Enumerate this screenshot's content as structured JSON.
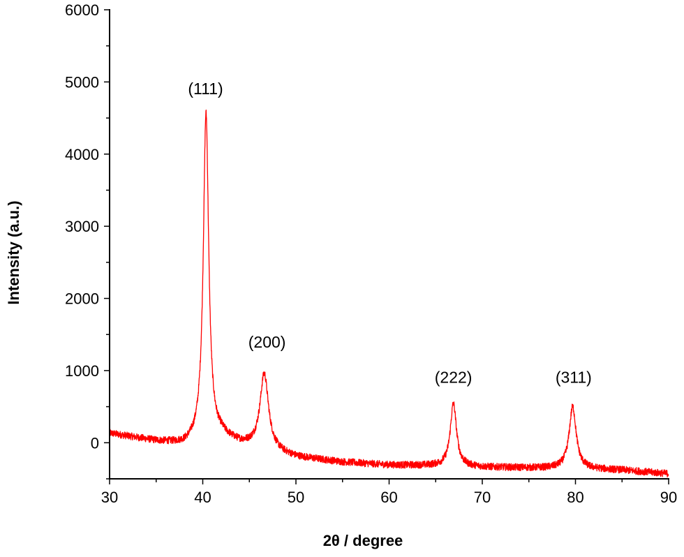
{
  "chart_data": {
    "type": "line",
    "title": "",
    "xlabel": "2θ / degree",
    "ylabel": "Intensity (a.u.)",
    "xlim": [
      30,
      90
    ],
    "ylim": [
      -500,
      6000
    ],
    "x_ticks": [
      30,
      40,
      50,
      60,
      70,
      80,
      90
    ],
    "y_ticks": [
      0,
      1000,
      2000,
      3000,
      4000,
      5000,
      6000
    ],
    "x_minor_step": 5,
    "y_minor_step": 500,
    "grid": false,
    "series": [
      {
        "color": "#ff0000",
        "baseline": [
          [
            30,
            130
          ],
          [
            35,
            20
          ],
          [
            38,
            -30
          ],
          [
            42,
            80
          ],
          [
            44,
            -20
          ],
          [
            50,
            -200
          ],
          [
            55,
            -270
          ],
          [
            60,
            -310
          ],
          [
            65,
            -320
          ],
          [
            70,
            -340
          ],
          [
            75,
            -350
          ],
          [
            80,
            -360
          ],
          [
            85,
            -380
          ],
          [
            90,
            -430
          ]
        ],
        "peaks": [
          {
            "center": 40.35,
            "height": 4530,
            "width": 0.35
          },
          {
            "center": 46.6,
            "height": 1050,
            "width": 0.55
          },
          {
            "center": 66.9,
            "height": 870,
            "width": 0.4
          },
          {
            "center": 79.7,
            "height": 860,
            "width": 0.45
          }
        ],
        "noise": 50
      }
    ],
    "annotations": [
      {
        "text": "(111)",
        "x": 40.3,
        "y": 4830
      },
      {
        "text": "(200)",
        "x": 46.9,
        "y": 1320
      },
      {
        "text": "(222)",
        "x": 66.9,
        "y": 830
      },
      {
        "text": "(311)",
        "x": 79.8,
        "y": 830
      }
    ]
  }
}
